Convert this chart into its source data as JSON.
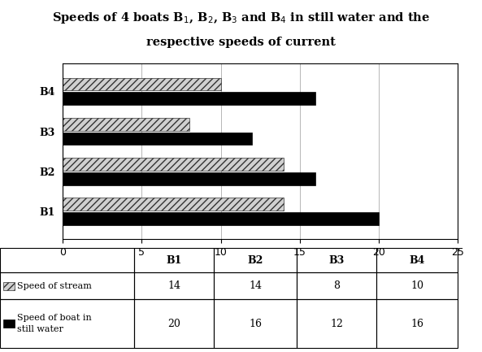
{
  "boats": [
    "B1",
    "B2",
    "B3",
    "B4"
  ],
  "speed_of_stream": [
    14,
    14,
    8,
    10
  ],
  "speed_of_boat": [
    20,
    16,
    12,
    16
  ],
  "bar_color_stream": "#c8c8c8",
  "bar_color_boat": "#000000",
  "xlim": [
    0,
    25
  ],
  "xticks": [
    0,
    5,
    10,
    15,
    20,
    25
  ],
  "bar_height": 0.32,
  "background_color": "#ffffff",
  "title_line1": "Speeds of 4 boats B$_1$, B$_2$, B$_3$ and B$_4$ in still water and the",
  "title_line2": "respective speeds of current",
  "col_headers": [
    "B1",
    "B2",
    "B3",
    "B4"
  ],
  "table_row1_label": "Speed of stream",
  "table_row2_label": "Speed of boat in\nstill water",
  "table_row1_vals": [
    "14",
    "14",
    "8",
    "10"
  ],
  "table_row2_vals": [
    "20",
    "16",
    "12",
    "16"
  ]
}
